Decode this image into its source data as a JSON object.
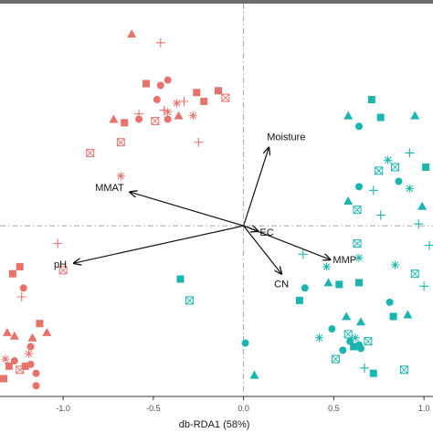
{
  "chart_data": {
    "type": "scatter",
    "title": "",
    "xlabel": "db-RDA1 (58%)",
    "ylabel": "",
    "xlim": [
      -1.35,
      1.05
    ],
    "ylim": [
      -0.95,
      1.25
    ],
    "x_ticks": [
      -1.0,
      -0.5,
      0.0,
      0.5,
      1.0
    ],
    "x_tick_labels": [
      "-1.0",
      "-0.5",
      "0.0",
      "0.5",
      "1.0"
    ],
    "grid": false,
    "reference_lines": {
      "x": 0,
      "y": 0,
      "style": "dashed"
    },
    "colors": {
      "group_a": "#e8716b",
      "group_b": "#1ab5b0",
      "axis": "#333333",
      "arrow": "#111111",
      "reference": "#9a9a9a"
    },
    "arrows": [
      {
        "label": "Moisture",
        "x": 0.14,
        "y": 0.44
      },
      {
        "label": "MMAT",
        "x": -0.63,
        "y": 0.19
      },
      {
        "label": "EC",
        "x": 0.08,
        "y": -0.03
      },
      {
        "label": "pH",
        "x": -0.94,
        "y": -0.21
      },
      {
        "label": "MMP",
        "x": 0.48,
        "y": -0.19
      },
      {
        "label": "CN",
        "x": 0.21,
        "y": -0.27
      }
    ],
    "series": [
      {
        "color": "#e8716b",
        "points": [
          {
            "x": -0.62,
            "y": 1.08,
            "shape": "triangle"
          },
          {
            "x": -0.46,
            "y": 1.03,
            "shape": "cross"
          },
          {
            "x": -0.54,
            "y": 0.8,
            "shape": "square"
          },
          {
            "x": -0.46,
            "y": 0.79,
            "shape": "circle"
          },
          {
            "x": -0.42,
            "y": 0.82,
            "shape": "circle"
          },
          {
            "x": -0.48,
            "y": 0.71,
            "shape": "circle"
          },
          {
            "x": -0.44,
            "y": 0.65,
            "shape": "cross"
          },
          {
            "x": -0.37,
            "y": 0.69,
            "shape": "star"
          },
          {
            "x": -0.33,
            "y": 0.7,
            "shape": "cross"
          },
          {
            "x": -0.26,
            "y": 0.75,
            "shape": "square"
          },
          {
            "x": -0.22,
            "y": 0.7,
            "shape": "square"
          },
          {
            "x": -0.14,
            "y": 0.76,
            "shape": "square"
          },
          {
            "x": -0.1,
            "y": 0.72,
            "shape": "boxx"
          },
          {
            "x": -0.42,
            "y": 0.64,
            "shape": "star"
          },
          {
            "x": -0.49,
            "y": 0.59,
            "shape": "boxx"
          },
          {
            "x": -0.58,
            "y": 0.6,
            "shape": "circle"
          },
          {
            "x": -0.66,
            "y": 0.58,
            "shape": "square"
          },
          {
            "x": -0.72,
            "y": 0.6,
            "shape": "triangle"
          },
          {
            "x": -0.58,
            "y": 0.63,
            "shape": "cross"
          },
          {
            "x": -0.36,
            "y": 0.62,
            "shape": "triangle"
          },
          {
            "x": -0.42,
            "y": 0.6,
            "shape": "circle"
          },
          {
            "x": -0.28,
            "y": 0.62,
            "shape": "star"
          },
          {
            "x": -0.25,
            "y": 0.47,
            "shape": "cross"
          },
          {
            "x": -0.68,
            "y": 0.47,
            "shape": "boxx"
          },
          {
            "x": -0.85,
            "y": 0.41,
            "shape": "boxx"
          },
          {
            "x": -0.68,
            "y": 0.28,
            "shape": "star"
          },
          {
            "x": -1.03,
            "y": -0.1,
            "shape": "cross"
          },
          {
            "x": -1.0,
            "y": -0.25,
            "shape": "boxx"
          },
          {
            "x": -1.24,
            "y": -0.23,
            "shape": "square"
          },
          {
            "x": -1.28,
            "y": -0.27,
            "shape": "square"
          },
          {
            "x": -1.22,
            "y": -0.35,
            "shape": "circle"
          },
          {
            "x": -1.23,
            "y": -0.4,
            "shape": "cross"
          },
          {
            "x": -1.13,
            "y": -0.55,
            "shape": "square"
          },
          {
            "x": -1.09,
            "y": -0.6,
            "shape": "triangle"
          },
          {
            "x": -1.17,
            "y": -0.63,
            "shape": "triangle"
          },
          {
            "x": -1.18,
            "y": -0.68,
            "shape": "circle"
          },
          {
            "x": -1.31,
            "y": -0.6,
            "shape": "triangle"
          },
          {
            "x": -1.27,
            "y": -0.62,
            "shape": "triangle"
          },
          {
            "x": -1.19,
            "y": -0.72,
            "shape": "star"
          },
          {
            "x": -1.32,
            "y": -0.75,
            "shape": "star"
          },
          {
            "x": -1.3,
            "y": -0.79,
            "shape": "square"
          },
          {
            "x": -1.21,
            "y": -0.79,
            "shape": "square"
          },
          {
            "x": -1.18,
            "y": -0.78,
            "shape": "circle"
          },
          {
            "x": -1.24,
            "y": -0.81,
            "shape": "boxx"
          },
          {
            "x": -1.15,
            "y": -0.83,
            "shape": "circle"
          },
          {
            "x": -1.27,
            "y": -0.76,
            "shape": "circle"
          },
          {
            "x": -1.15,
            "y": -0.9,
            "shape": "circle"
          },
          {
            "x": -1.33,
            "y": -0.86,
            "shape": "square"
          }
        ]
      },
      {
        "color": "#1ab5b0",
        "points": [
          {
            "x": 0.71,
            "y": 0.71,
            "shape": "square"
          },
          {
            "x": 0.58,
            "y": 0.62,
            "shape": "triangle"
          },
          {
            "x": 0.64,
            "y": 0.56,
            "shape": "circle"
          },
          {
            "x": 0.76,
            "y": 0.61,
            "shape": "square"
          },
          {
            "x": 0.95,
            "y": 0.62,
            "shape": "triangle"
          },
          {
            "x": 0.92,
            "y": 0.41,
            "shape": "cross"
          },
          {
            "x": 0.8,
            "y": 0.37,
            "shape": "star"
          },
          {
            "x": 0.84,
            "y": 0.33,
            "shape": "boxx"
          },
          {
            "x": 0.75,
            "y": 0.31,
            "shape": "boxx"
          },
          {
            "x": 0.86,
            "y": 0.25,
            "shape": "circle"
          },
          {
            "x": 0.92,
            "y": 0.21,
            "shape": "star"
          },
          {
            "x": 0.64,
            "y": 0.22,
            "shape": "circle"
          },
          {
            "x": 0.72,
            "y": 0.2,
            "shape": "cross"
          },
          {
            "x": 1.01,
            "y": 0.33,
            "shape": "square"
          },
          {
            "x": 0.63,
            "y": 0.09,
            "shape": "boxx"
          },
          {
            "x": 0.58,
            "y": 0.14,
            "shape": "triangle"
          },
          {
            "x": 0.76,
            "y": 0.06,
            "shape": "cross"
          },
          {
            "x": 0.99,
            "y": 0.11,
            "shape": "triangle"
          },
          {
            "x": 0.97,
            "y": 0.01,
            "shape": "cross"
          },
          {
            "x": 1.03,
            "y": -0.11,
            "shape": "cross"
          },
          {
            "x": 0.33,
            "y": -0.16,
            "shape": "cross"
          },
          {
            "x": 0.46,
            "y": -0.23,
            "shape": "star"
          },
          {
            "x": 0.64,
            "y": -0.18,
            "shape": "star"
          },
          {
            "x": 0.84,
            "y": -0.22,
            "shape": "star"
          },
          {
            "x": 0.95,
            "y": -0.27,
            "shape": "boxx"
          },
          {
            "x": 1.0,
            "y": -0.34,
            "shape": "cross"
          },
          {
            "x": 0.64,
            "y": -0.32,
            "shape": "square"
          },
          {
            "x": 0.53,
            "y": -0.33,
            "shape": "square"
          },
          {
            "x": 0.47,
            "y": -0.32,
            "shape": "triangle"
          },
          {
            "x": 0.34,
            "y": -0.35,
            "shape": "circle"
          },
          {
            "x": 0.31,
            "y": -0.42,
            "shape": "square"
          },
          {
            "x": 0.81,
            "y": -0.43,
            "shape": "circle"
          },
          {
            "x": 0.91,
            "y": -0.5,
            "shape": "triangle"
          },
          {
            "x": 0.83,
            "y": -0.51,
            "shape": "square"
          },
          {
            "x": 0.57,
            "y": -0.51,
            "shape": "triangle"
          },
          {
            "x": 0.65,
            "y": -0.54,
            "shape": "triangle"
          },
          {
            "x": 0.49,
            "y": -0.58,
            "shape": "circle"
          },
          {
            "x": 0.42,
            "y": -0.63,
            "shape": "star"
          },
          {
            "x": 0.58,
            "y": -0.61,
            "shape": "boxx"
          },
          {
            "x": 0.62,
            "y": -0.63,
            "shape": "star"
          },
          {
            "x": 0.59,
            "y": -0.65,
            "shape": "circle"
          },
          {
            "x": 0.69,
            "y": -0.65,
            "shape": "boxx"
          },
          {
            "x": 0.61,
            "y": -0.68,
            "shape": "square"
          },
          {
            "x": 0.65,
            "y": -0.69,
            "shape": "circle"
          },
          {
            "x": 0.55,
            "y": -0.7,
            "shape": "circle"
          },
          {
            "x": 0.51,
            "y": -0.75,
            "shape": "boxx"
          },
          {
            "x": 0.67,
            "y": -0.8,
            "shape": "cross"
          },
          {
            "x": 0.72,
            "y": -0.83,
            "shape": "square"
          },
          {
            "x": 0.89,
            "y": -0.81,
            "shape": "boxx"
          },
          {
            "x": 0.64,
            "y": -0.67,
            "shape": "circle"
          },
          {
            "x": 0.06,
            "y": -0.84,
            "shape": "triangle"
          },
          {
            "x": 0.01,
            "y": -0.66,
            "shape": "circle"
          },
          {
            "x": -0.3,
            "y": -0.42,
            "shape": "boxx"
          },
          {
            "x": -0.35,
            "y": -0.3,
            "shape": "square"
          },
          {
            "x": 0.63,
            "y": -0.1,
            "shape": "boxx"
          }
        ]
      }
    ]
  }
}
